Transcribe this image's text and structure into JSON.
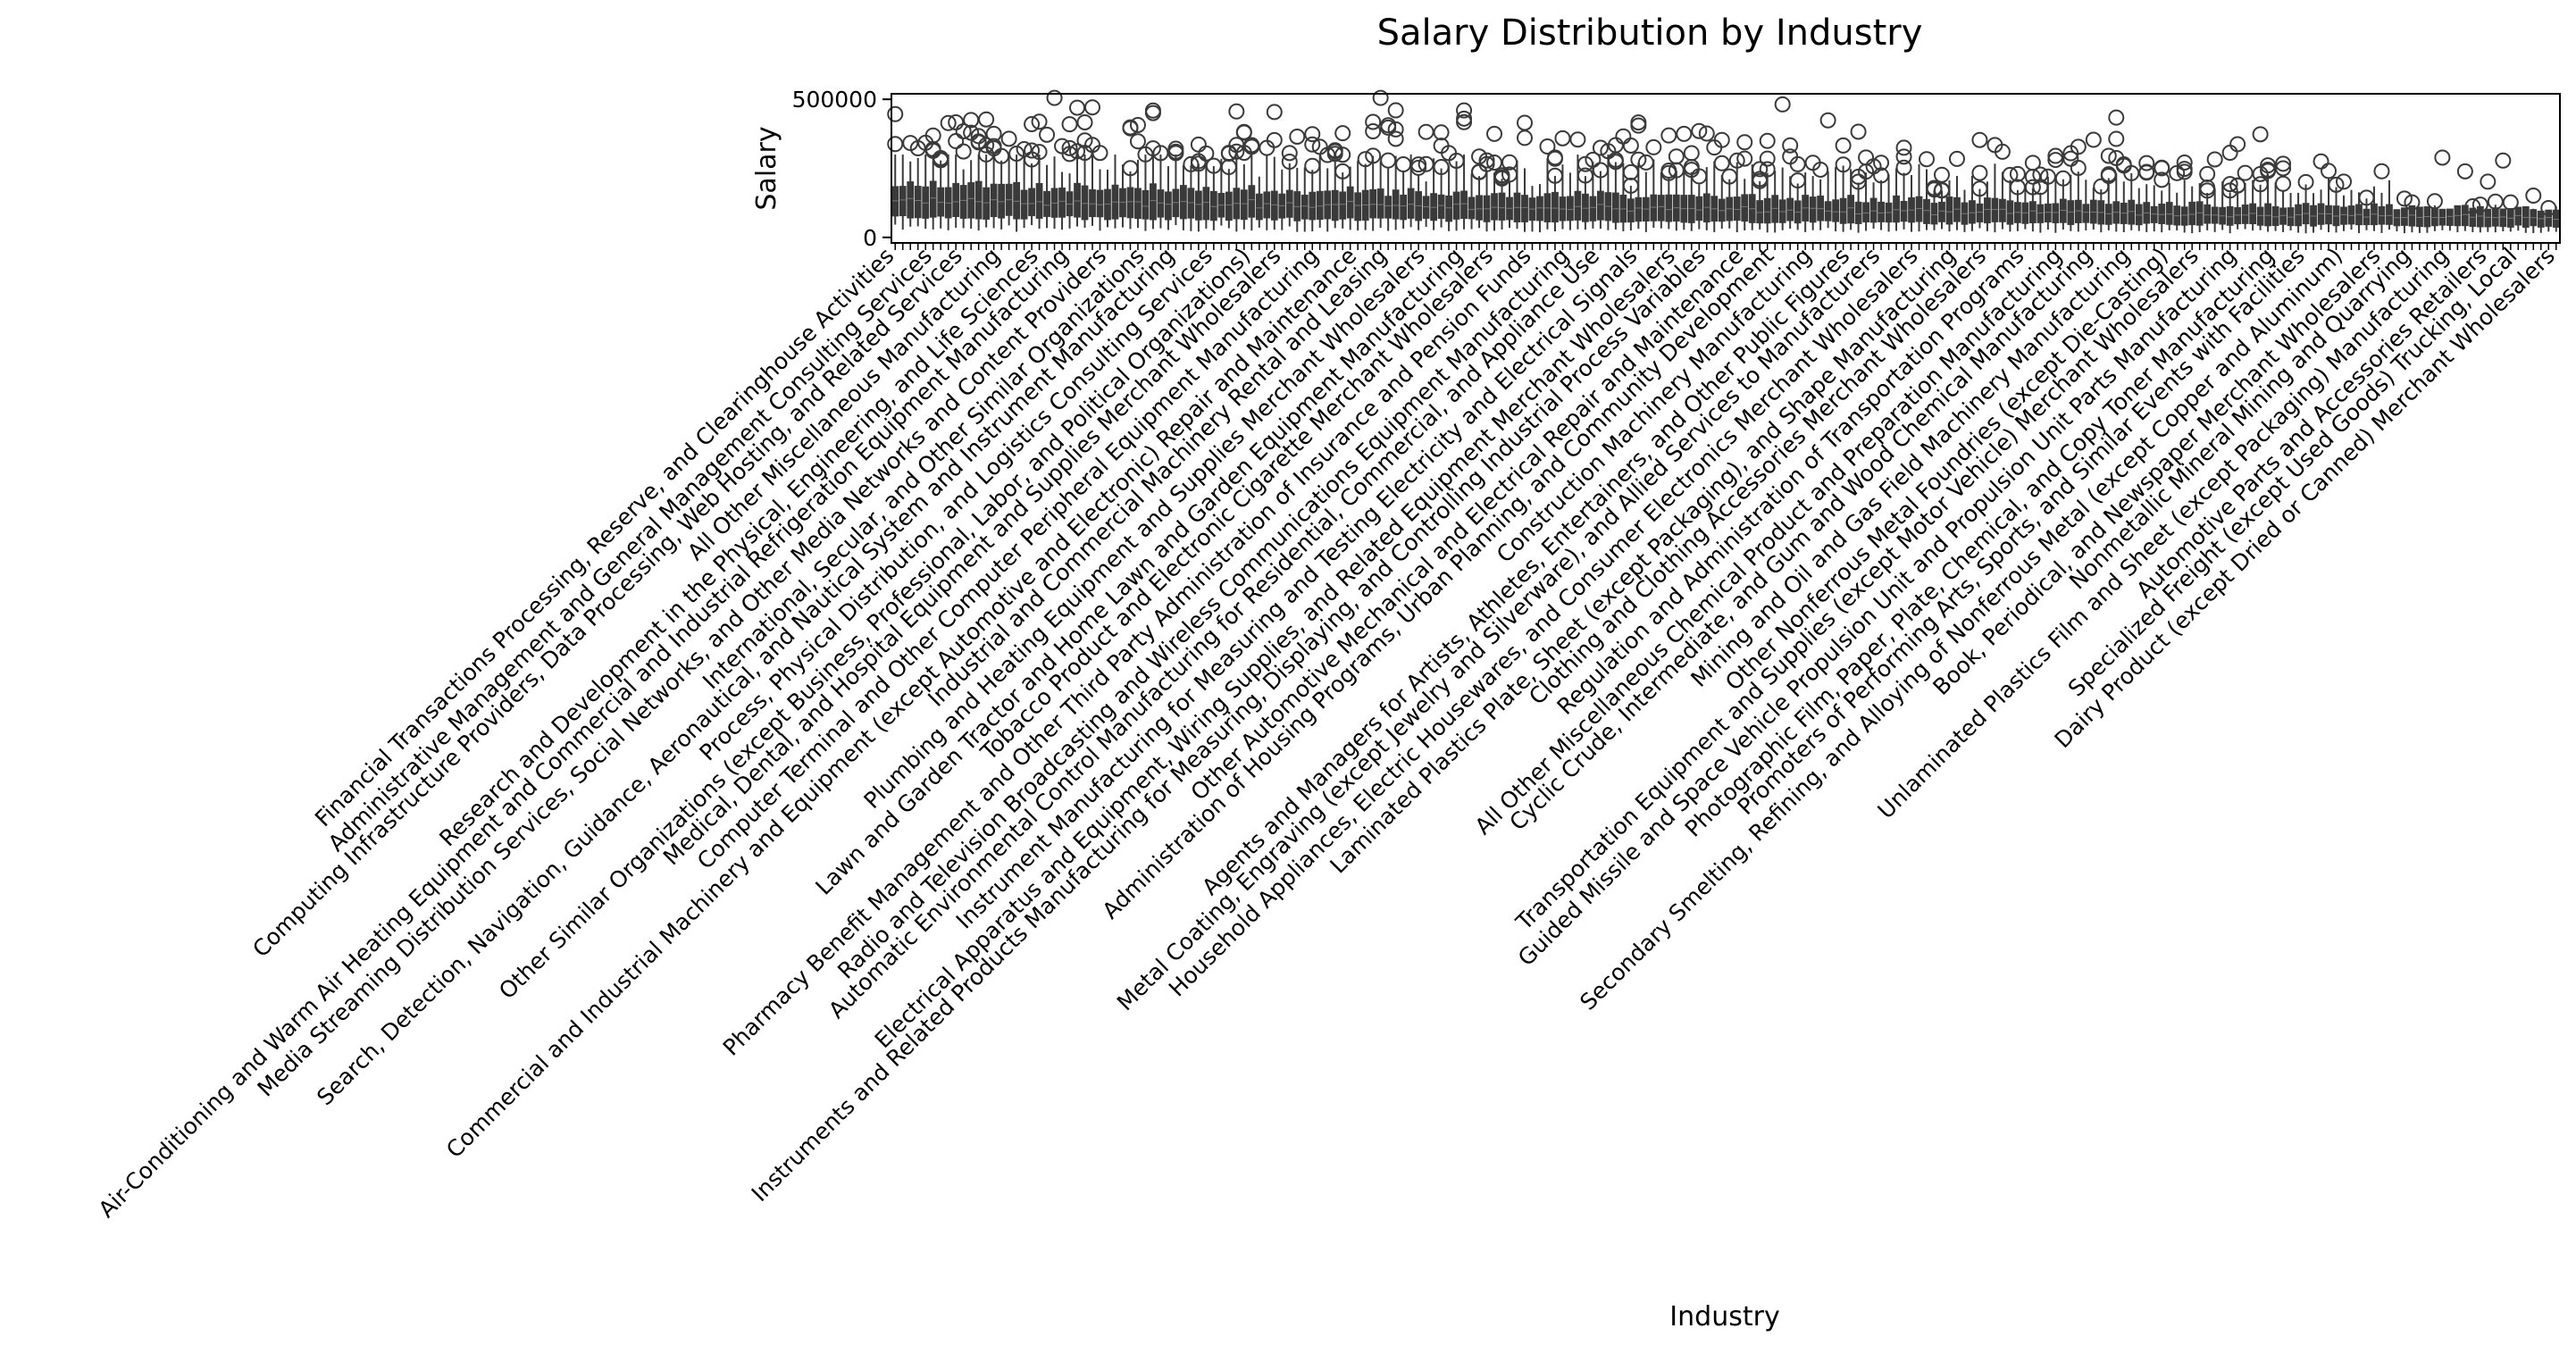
{
  "chart_data": {
    "type": "box",
    "title": "Salary Distribution by Industry",
    "xlabel": "Industry",
    "ylabel": "Salary",
    "y_ticks": [
      0,
      500000
    ],
    "y_tick_labels": [
      "0",
      "500000"
    ],
    "ylim": [
      -20000,
      520000
    ],
    "grid": false,
    "legend": "none",
    "box_color": "#3a3a3a",
    "num_categories": 220,
    "visible_category_labels": [
      "Financial Transactions Processing, Reserve, and Clearinghouse Activities",
      "Administrative Management and General Management Consulting Services",
      "Computing Infrastructure Providers, Data Processing, Web Hosting, and Related Services",
      "All Other Miscellaneous Manufacturing",
      "Research and Development in the Physical, Engineering, and Life Sciences",
      "Air-Conditioning and Warm Air Heating Equipment and Commercial and Industrial Refrigeration Equipment Manufacturing",
      "Media Streaming Distribution Services, Social Networks, and Other Media Networks and Content Providers",
      "International, Secular, and Other Similar Organizations",
      "Search, Detection, Navigation, Guidance, Aeronautical, and Nautical System and Instrument Manufacturing",
      "Process, Physical Distribution, and Logistics Consulting Services",
      "Other Similar Organizations (except Business, Professional, Labor, and Political Organizations)",
      "Medical, Dental, and Hospital Equipment and Supplies Merchant Wholesalers",
      "Computer Terminal and Other Computer Peripheral Equipment Manufacturing",
      "Commercial and Industrial Machinery and Equipment (except Automotive and Electronic) Repair and Maintenance",
      "Industrial and Commercial Machinery Rental and Leasing",
      "Plumbing and Heating Equipment and Supplies Merchant Wholesalers",
      "Lawn and Garden Tractor and Home Lawn and Garden Equipment Manufacturing",
      "Tobacco Product and Electronic Cigarette Merchant Wholesalers",
      "Pharmacy Benefit Management and Other Third Party Administration of Insurance and Pension Funds",
      "Radio and Television Broadcasting and Wireless Communications Equipment Manufacturing",
      "Automatic Environmental Control Manufacturing for Residential, Commercial, and Appliance Use",
      "Instrument Manufacturing for Measuring and Testing Electricity and Electrical Signals",
      "Electrical Apparatus and Equipment, Wiring Supplies, and Related Equipment Merchant Wholesalers",
      "Instruments and Related Products Manufacturing for Measuring, Displaying, and Controlling Industrial Process Variables",
      "Other Automotive Mechanical and Electrical Repair and Maintenance",
      "Administration of Housing Programs, Urban Planning, and Community Development",
      "Construction Machinery Manufacturing",
      "Agents and Managers for Artists, Athletes, Entertainers, and Other Public Figures",
      "Metal Coating, Engraving (except Jewelry and Silverware), and Allied Services to Manufacturers",
      "Household Appliances, Electric Housewares, and Consumer Electronics Merchant Wholesalers",
      "Laminated Plastics Plate, Sheet (except Packaging), and Shape Manufacturing",
      "Clothing and Clothing Accessories Merchant Wholesalers",
      "Regulation and Administration of Transportation Programs",
      "All Other Miscellaneous Chemical Product and Preparation Manufacturing",
      "Cyclic Crude, Intermediate, and Gum and Wood Chemical Manufacturing",
      "Mining and Oil and Gas Field Machinery Manufacturing",
      "Other Nonferrous Metal Foundries (except Die-Casting)",
      "Transportation Equipment and Supplies (except Motor Vehicle) Merchant Wholesalers",
      "Guided Missile and Space Vehicle Propulsion Unit and Propulsion Unit Parts Manufacturing",
      "Photographic Film, Paper, Plate, Chemical, and Copy Toner Manufacturing",
      "Promoters of Performing Arts, Sports, and Similar Events with Facilities",
      "Secondary Smelting, Refining, and Alloying of Nonferrous Metal (except Copper and Aluminum)",
      "Book, Periodical, and Newspaper Merchant Wholesalers",
      "Nonmetallic Mineral Mining and Quarrying",
      "Unlaminated Plastics Film and Sheet (except Packaging) Manufacturing",
      "Automotive Parts and Accessories Retailers",
      "Specialized Freight (except Used Goods) Trucking, Local",
      "Dairy Product (except Dried or Canned) Merchant Wholesalers"
    ]
  }
}
